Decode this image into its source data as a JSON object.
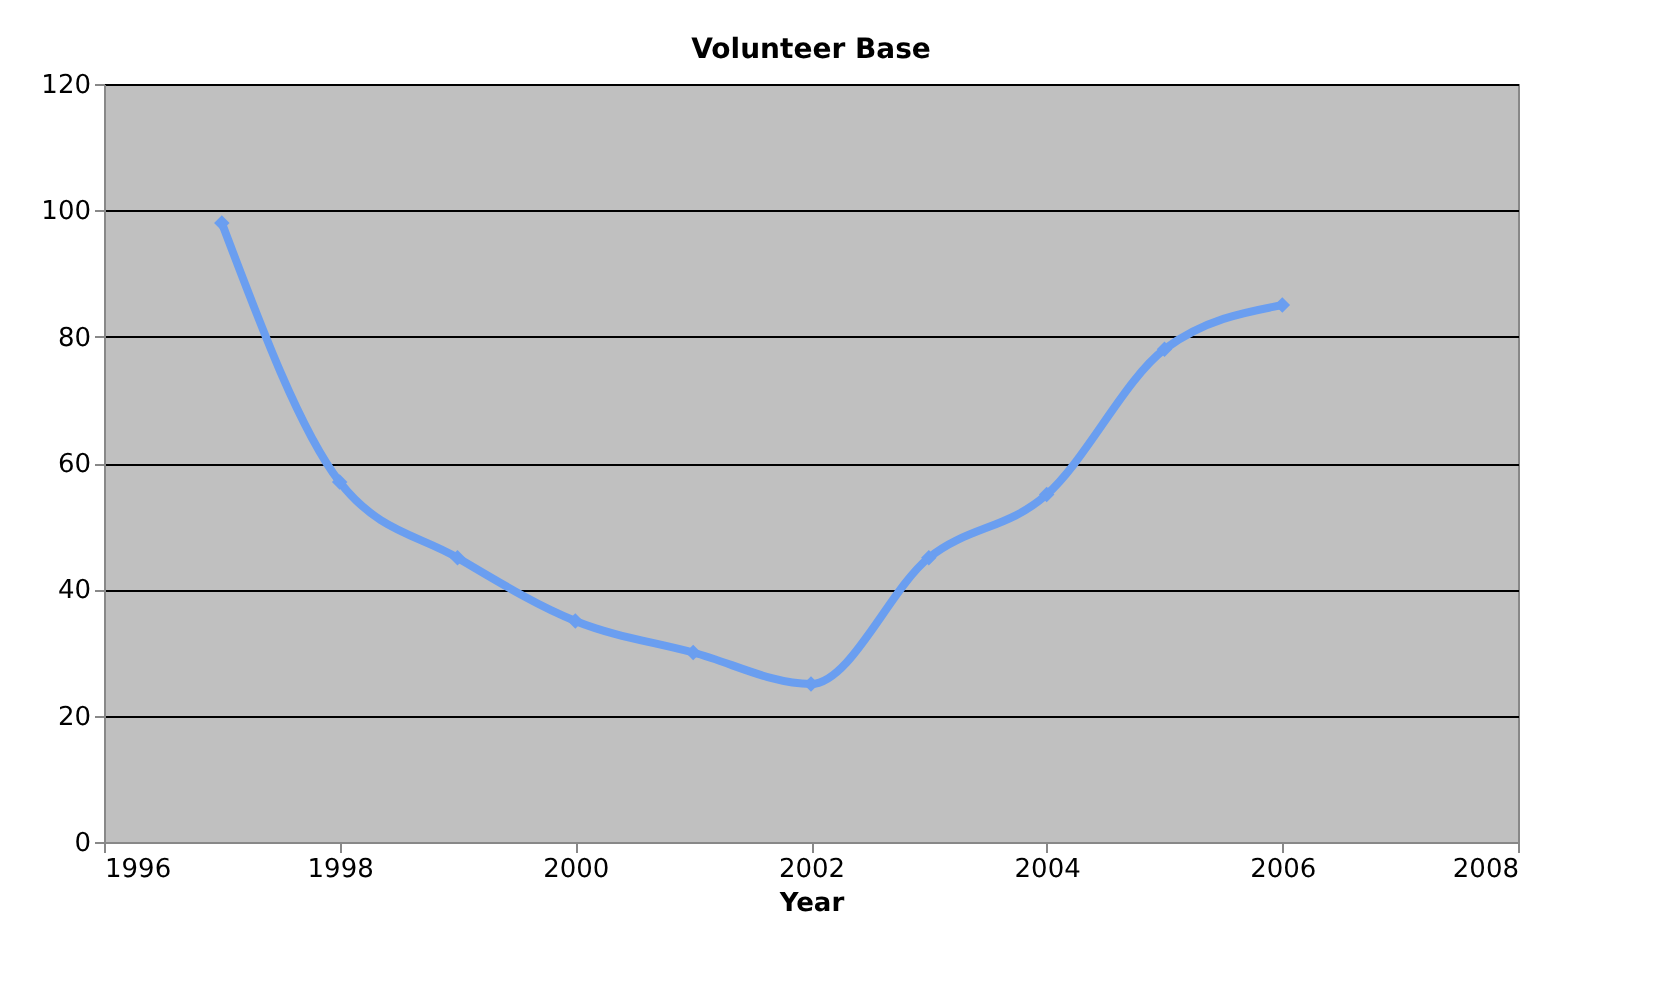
{
  "chart_data": {
    "type": "line",
    "title": "Volunteer Base",
    "xlabel": "Year",
    "x": [
      1997,
      1998,
      1999,
      2000,
      2001,
      2002,
      2003,
      2004,
      2005,
      2006
    ],
    "series": [
      {
        "color": "#6a9ef0",
        "values": [
          98,
          57,
          45,
          35,
          30,
          25,
          45,
          55,
          78,
          85
        ]
      }
    ],
    "xlim": [
      1996,
      2008
    ],
    "xticks": [
      1996,
      1998,
      2000,
      2002,
      2004,
      2006,
      2008
    ],
    "ylim": [
      0,
      120
    ],
    "yticks": [
      0,
      20,
      40,
      60,
      80,
      100,
      120
    ],
    "grid": "y",
    "marker": "diamond",
    "line_style": "solid"
  }
}
